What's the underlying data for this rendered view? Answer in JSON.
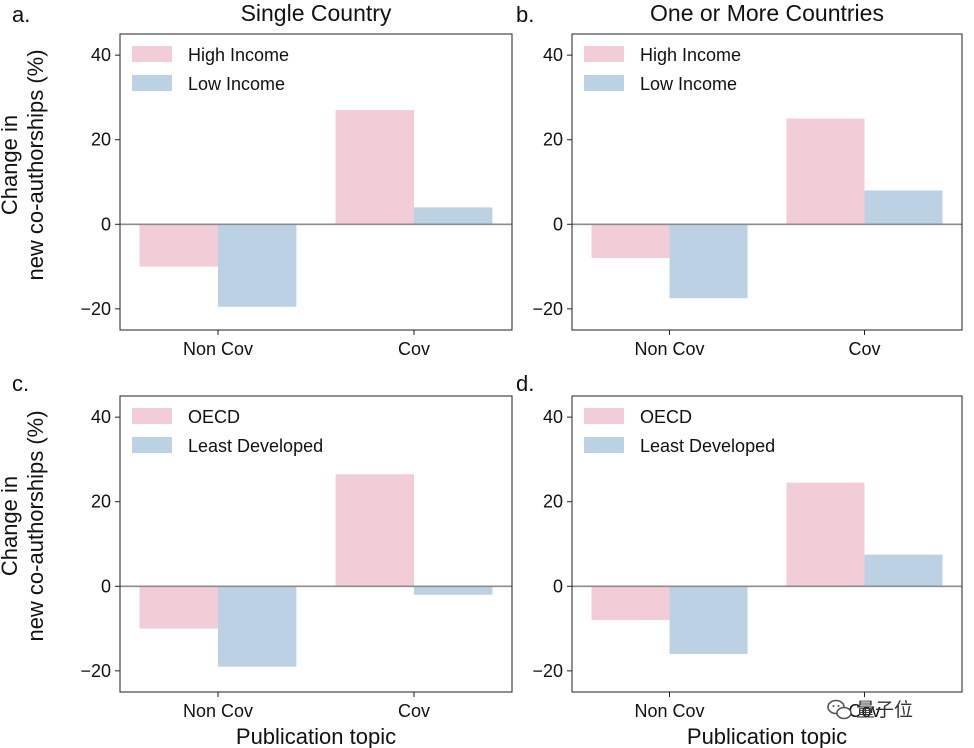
{
  "colors": {
    "high": "#f2ccd6",
    "low": "#bcd2e4",
    "axis": "#222222",
    "zero_line": "#8c8c8c"
  },
  "watermark": {
    "text": "量子位",
    "icon": "wechat-icon"
  },
  "shared": {
    "xlabel": "Publication topic",
    "ylabel_line1": "Change in",
    "ylabel_line2": "new co-authorships (%)"
  },
  "chart_data": [
    {
      "id": "a",
      "letter": "a.",
      "type": "bar",
      "title": "Single Country",
      "categories": [
        "Non Cov",
        "Cov"
      ],
      "series": [
        {
          "name": "High Income",
          "values": [
            -10,
            27
          ]
        },
        {
          "name": "Low Income",
          "values": [
            -19.5,
            4
          ]
        }
      ],
      "ylim": [
        -25,
        45
      ],
      "yticks": [
        -20,
        0,
        20,
        40
      ],
      "ylabel": "Change in new co-authorships (%)",
      "xlabel": "",
      "legend": "top-left"
    },
    {
      "id": "b",
      "letter": "b.",
      "type": "bar",
      "title": "One or More Countries",
      "categories": [
        "Non Cov",
        "Cov"
      ],
      "series": [
        {
          "name": "High Income",
          "values": [
            -8,
            25
          ]
        },
        {
          "name": "Low Income",
          "values": [
            -17.5,
            8
          ]
        }
      ],
      "ylim": [
        -25,
        45
      ],
      "yticks": [
        -20,
        0,
        20,
        40
      ],
      "ylabel": "",
      "xlabel": "",
      "legend": "top-left"
    },
    {
      "id": "c",
      "letter": "c.",
      "type": "bar",
      "title": "",
      "categories": [
        "Non Cov",
        "Cov"
      ],
      "series": [
        {
          "name": "OECD",
          "values": [
            -10,
            26.5
          ]
        },
        {
          "name": "Least Developed",
          "values": [
            -19,
            -2
          ]
        }
      ],
      "ylim": [
        -25,
        45
      ],
      "yticks": [
        -20,
        0,
        20,
        40
      ],
      "ylabel": "Change in new co-authorships (%)",
      "xlabel": "Publication topic",
      "legend": "top-left"
    },
    {
      "id": "d",
      "letter": "d.",
      "type": "bar",
      "title": "",
      "categories": [
        "Non Cov",
        "Cov"
      ],
      "series": [
        {
          "name": "OECD",
          "values": [
            -8,
            24.5
          ]
        },
        {
          "name": "Least Developed",
          "values": [
            -16,
            7.5
          ]
        }
      ],
      "ylim": [
        -25,
        45
      ],
      "yticks": [
        -20,
        0,
        20,
        40
      ],
      "ylabel": "",
      "xlabel": "Publication topic",
      "legend": "top-left"
    }
  ]
}
